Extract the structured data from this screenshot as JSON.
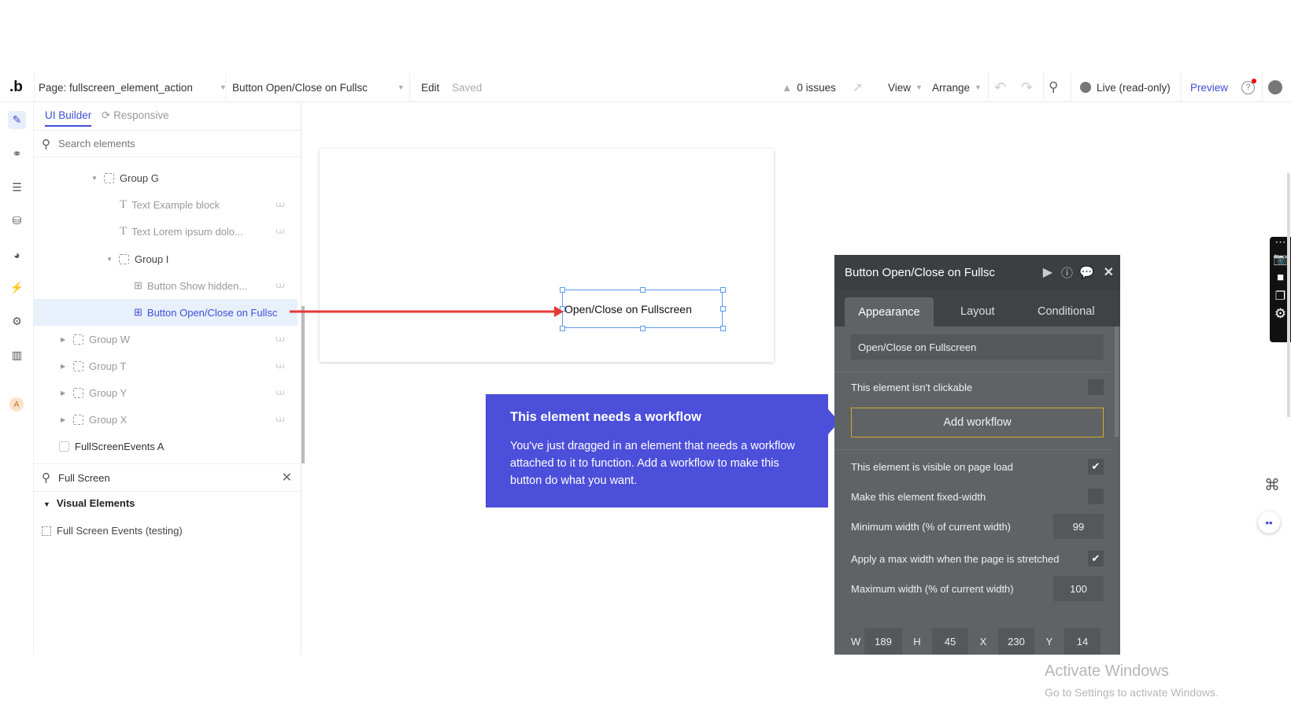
{
  "topbar": {
    "page_label": "Page: fullscreen_element_action",
    "element_select": "Button Open/Close on Fullsc",
    "edit": "Edit",
    "saved": "Saved",
    "issues": "0 issues",
    "view": "View",
    "arrange": "Arrange",
    "live": "Live (read-only)",
    "preview": "Preview"
  },
  "panel": {
    "tabs": [
      "UI Builder",
      "Responsive"
    ],
    "search_placeholder": "Search elements",
    "tree": [
      {
        "label": "Group G",
        "type": "group",
        "expanded": true
      },
      {
        "label": "Text Example block",
        "type": "text"
      },
      {
        "label": "Text Lorem ipsum dolo...",
        "type": "text"
      },
      {
        "label": "Group I",
        "type": "group",
        "expanded": true
      },
      {
        "label": "Button Show hidden...",
        "type": "button"
      },
      {
        "label": "Button Open/Close on Fullsc",
        "type": "button",
        "selected": true
      },
      {
        "label": "Group W",
        "type": "group"
      },
      {
        "label": "Group T",
        "type": "group"
      },
      {
        "label": "Group Y",
        "type": "group"
      },
      {
        "label": "Group X",
        "type": "group"
      },
      {
        "label": "FullScreenEvents A",
        "type": "element"
      }
    ],
    "search2_value": "Full Screen",
    "section": "Visual Elements",
    "result": "Full Screen Events (testing)"
  },
  "canvas": {
    "button_text": "Open/Close on Fullscreen"
  },
  "tooltip": {
    "title": "This element needs a workflow",
    "body": "You've just dragged in an element that needs a workflow attached to it to function. Add a workflow to make this button do what you want."
  },
  "props": {
    "title": "Button Open/Close on Fullsc",
    "tabs": [
      "Appearance",
      "Layout",
      "Conditional"
    ],
    "text_value": "Open/Close on Fullscreen",
    "not_clickable": "This element isn't clickable",
    "add_workflow": "Add workflow",
    "visible": "This element is visible on page load",
    "fixed_width": "Make this element fixed-width",
    "min_width": "Minimum width (% of current width)",
    "min_width_value": "99",
    "apply_max": "Apply a max width when the page is stretched",
    "max_width": "Maximum width (% of current width)",
    "max_width_value": "100",
    "w_label": "W",
    "w": "189",
    "h_label": "H",
    "h": "45",
    "x_label": "X",
    "x": "230",
    "y_label": "Y",
    "y": "14"
  },
  "watermark": {
    "line1": "Activate Windows",
    "line2": "Go to Settings to activate Windows."
  },
  "colors": {
    "accent": "#3f4fd8",
    "tooltip_bg": "#4c4fd9",
    "props_bg": "#5f6366",
    "arrow": "#e53935"
  }
}
